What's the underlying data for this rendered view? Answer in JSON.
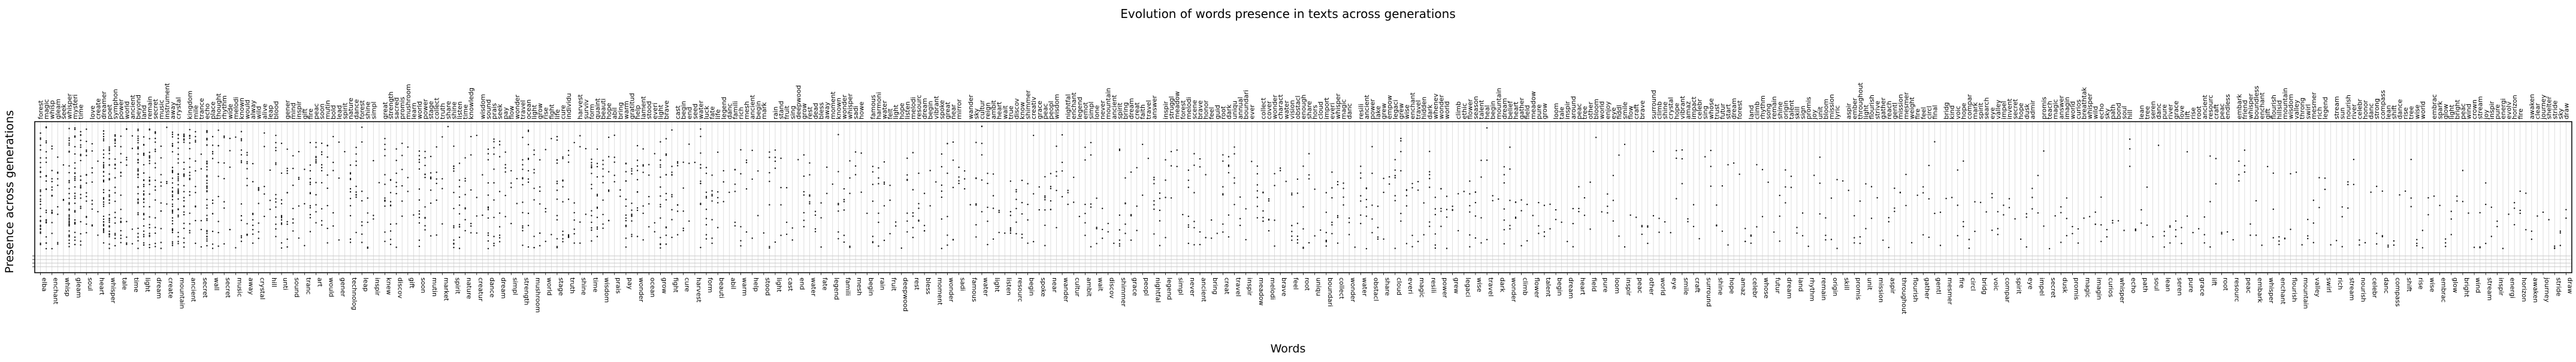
{
  "chart_data": {
    "type": "scatter",
    "title": "Evolution of words presence in texts across generations",
    "xlabel": "Words",
    "ylabel": "Presence across generations",
    "grid": true,
    "y_description": "unlabeled generation index; most markers cluster at the top of the plot, with a few early generations shaded at the bottom",
    "x_words": [
      "elba",
      "forest",
      "enchant",
      "magic",
      "whisp",
      "village",
      "gleam",
      "wise",
      "soul",
      "ancient",
      "heart",
      "seek",
      "whisper",
      "mysteri",
      "tale",
      "journey",
      "time",
      "love",
      "light",
      "extraordinari",
      "dream",
      "power",
      "create",
      "world",
      "mountain",
      "live",
      "ancient",
      "beyond",
      "secret",
      "land",
      "wall",
      "remain",
      "secret",
      "new",
      "music",
      "instrument",
      "away",
      "hidden",
      "crystal",
      "kingdom",
      "hill",
      "mile",
      "unti",
      "echo",
      "sound",
      "place",
      "tranc",
      "rhythm",
      "art",
      "melodi",
      "would",
      "known",
      "gener",
      "everi",
      "technolog",
      "mind",
      "leap",
      "wild",
      "inspir",
      "human",
      "knew",
      "alway",
      "discov",
      "fire",
      "gift",
      "peac",
      "soon",
      "journey",
      "mutin",
      "bold",
      "market",
      "lead",
      "spirit",
      "shadow",
      "nature",
      "secret",
      "creatur",
      "sacred",
      "dance",
      "forest",
      "dream",
      "shine",
      "simpl",
      "great",
      "strength",
      "promis",
      "mushroom",
      "learn",
      "world",
      "power",
      "stage",
      "collect",
      "truth",
      "share",
      "shine",
      "listen",
      "time",
      "knowledg",
      "wisdom",
      "sound",
      "prais",
      "seek",
      "pay",
      "flow",
      "wonder",
      "travel",
      "ocean",
      "light",
      "grow",
      "rise",
      "fight",
      "life",
      "cure",
      "individu",
      "harvest",
      "surviv",
      "form",
      "quaint",
      "beauti",
      "hope",
      "abil",
      "bring",
      "warm",
      "gratitud",
      "help",
      "lament",
      "stood",
      "everi",
      "light",
      "brave",
      "cast",
      "begin",
      "end",
      "seed",
      "water",
      "luck",
      "fate",
      "life",
      "legend",
      "danc",
      "famili",
      "rich",
      "mesh",
      "ancient",
      "begin",
      "mark",
      "rain",
      "stand",
      "fruit",
      "sing",
      "deepwood",
      "grow",
      "rest",
      "dead",
      "bless",
      "away",
      "moment",
      "known",
      "wonder",
      "whisper",
      "sadi",
      "howe",
      "famous",
      "harmoni",
      "water",
      "felt",
      "light",
      "hope",
      "listen",
      "melodi",
      "resourc",
      "dream",
      "begin",
      "vibrant",
      "spoke",
      "great",
      "near",
      "mirror",
      "wander",
      "sky",
      "cultur",
      "reign",
      "ambit",
      "heart",
      "wait",
      "true",
      "discov",
      "know",
      "shimmer",
      "creativ",
      "grace",
      "peac",
      "peopl",
      "wisdom",
      "nightfal",
      "enchant",
      "legend",
      "emot",
      "simpl",
      "lone",
      "never",
      "mountain",
      "ancient",
      "spirit",
      "bring",
      "dream",
      "creat",
      "faith",
      "travel",
      "answer",
      "inspir",
      "struggl",
      "meadow",
      "forest",
      "melodi",
      "scene",
      "brave",
      "honor",
      "feel",
      "guid",
      "root",
      "dark",
      "uniqu",
      "annual",
      "boundari",
      "ever",
      "collect",
      "cover",
      "wonder",
      "charact",
      "water",
      "vision",
      "obstacl",
      "enough",
      "share",
      "hors",
      "cloud",
      "import",
      "everi",
      "whisper",
      "magic",
      "danc",
      "resili",
      "ancient",
      "power",
      "lake",
      "grew",
      "empow",
      "legaci",
      "grew",
      "wise",
      "enchant",
      "travel",
      "hidden",
      "dark",
      "whenev",
      "wonder",
      "world",
      "climb",
      "ethic",
      "flower",
      "season",
      "talent",
      "heal",
      "begin",
      "mountain",
      "dream",
      "belief",
      "heart",
      "gather",
      "field",
      "meadow",
      "pure",
      "grow",
      "loom",
      "tale",
      "inspir",
      "around",
      "peac",
      "tree",
      "other",
      "bloom",
      "world",
      "enjoy",
      "eye",
      "fiddl",
      "smile",
      "flow",
      "craft",
      "brave",
      "surround",
      "climb",
      "shine",
      "crystal",
      "hope",
      "vibrant",
      "amaz",
      "impact",
      "celebr",
      "sing",
      "whose",
      "trust",
      "futur",
      "start",
      "dream",
      "forest",
      "land",
      "climb",
      "rhythm",
      "song",
      "remain",
      "shine",
      "origin",
      "talent",
      "skill",
      "sign",
      "promis",
      "joy",
      "unit",
      "bloom",
      "mission",
      "lyric",
      "aspir",
      "ember",
      "throughout",
      "light",
      "flourish",
      "strive",
      "gather",
      "reach",
      "gentl",
      "mission",
      "mesmer",
      "weight",
      "fire",
      "feel",
      "circl",
      "final",
      "bridg",
      "kind",
      "voic",
      "hope",
      "compar",
      "mark",
      "spirit",
      "search",
      "eye",
      "valley",
      "impel",
      "invent",
      "secret",
      "hope",
      "dusk",
      "admir",
      "promis",
      "teach",
      "magic",
      "answer",
      "imagin",
      "world",
      "curios",
      "breathtak",
      "whisper",
      "wild",
      "echo",
      "sky",
      "path",
      "bond",
      "soul",
      "hill",
      "lean",
      "tree",
      "seren",
      "danc",
      "pure",
      "river",
      "grace",
      "love",
      "lift",
      "rise",
      "root",
      "ancient",
      "resourc",
      "craft",
      "peac",
      "endless",
      "embark",
      "friend",
      "whisper",
      "boundless",
      "enchant",
      "gift",
      "flourish",
      "hillsid",
      "mountain",
      "wisdom",
      "valley",
      "throng",
      "swirl",
      "mesmer",
      "rich",
      "legend",
      "stream",
      "sun",
      "nourish",
      "river",
      "celebr",
      "honor",
      "danc",
      "strong",
      "compass",
      "lean",
      "shift",
      "dance",
      "rise",
      "tree",
      "wise",
      "world",
      "embrac",
      "spark",
      "glow",
      "light",
      "bright",
      "peac",
      "wind",
      "crown",
      "stream",
      "joy",
      "inspir",
      "pure",
      "energi",
      "evolv",
      "horizon",
      "fire",
      "awaken",
      "clear",
      "journey",
      "shelter",
      "stride",
      "sky",
      "draw"
    ],
    "tick_labels": [
      "elba",
      "forest",
      "enchant",
      "magic",
      "villag",
      "whisp",
      "gleam",
      "wise",
      "soul",
      "ancient",
      "heart",
      "mysteri",
      "seek",
      "whisper",
      "tale",
      "light",
      "journey",
      "time",
      "create",
      "love",
      "power",
      "extraordinari",
      "dream",
      "world",
      "symphon",
      "mountain",
      "nature",
      "live",
      "ancient",
      "beyond",
      "secret",
      "land",
      "wall",
      "remain",
      "music",
      "new",
      "instrument",
      "away",
      "secret",
      "hidden",
      "crystal",
      "kingdom",
      "mile",
      "hill",
      "echo",
      "rhythm",
      "sound",
      "place",
      "trance",
      "technolog",
      "art",
      "mind",
      "melodi",
      "known",
      "would",
      "human",
      "gener",
      "everi",
      "knew",
      "leap",
      "wild",
      "alway",
      "inspir",
      "discov",
      "music",
      "gift",
      "fire",
      "peac",
      "soon",
      "journey",
      "mutin",
      "market",
      "bold",
      "lead",
      "spirit",
      "shadow",
      "dance"
    ],
    "top_labels": [
      "forest",
      "magic",
      "whisp",
      "gleam",
      "seek",
      "whisper",
      "mysteri",
      "time",
      "love",
      "create",
      "dreamer",
      "poet",
      "symphon",
      "power",
      "world",
      "ancient",
      "beyond",
      "land",
      "remain",
      "secret",
      "music",
      "instrument",
      "away",
      "crystal",
      "kingdom",
      "mile",
      "trance",
      "echo",
      "place",
      "thought",
      "rhythm",
      "wide",
      "melodi",
      "known",
      "would",
      "alway",
      "wild",
      "alive",
      "leap",
      "blood",
      "gener",
      "mind",
      "inspir",
      "gift",
      "fire",
      "peac",
      "soon",
      "mutin",
      "bold",
      "lead",
      "spirit",
      "nature",
      "dance",
      "forest",
      "shine",
      "simpl",
      "great",
      "strength",
      "sacred",
      "promis",
      "mushroom",
      "learn",
      "world",
      "power",
      "stage",
      "collect",
      "truth",
      "share",
      "shine",
      "listen",
      "time",
      "knowledg",
      "wisdom",
      "sound",
      "prais",
      "seek",
      "pay",
      "flow",
      "wonder",
      "travel",
      "ocean",
      "light",
      "grow",
      "rise",
      "fight",
      "life",
      "cure",
      "individu",
      "harvest",
      "surviv",
      "form",
      "quaint",
      "beauti",
      "hope",
      "abil",
      "bring",
      "warm",
      "gratitud",
      "help",
      "lament",
      "stood",
      "everi",
      "light",
      "brave",
      "cast",
      "begin",
      "end",
      "seed",
      "water",
      "luck",
      "fate",
      "life",
      "legend",
      "danc",
      "famili",
      "rich",
      "mesh",
      "ancient",
      "begin",
      "mark",
      "rain",
      "stand",
      "fruit",
      "sing",
      "deepwood",
      "grow",
      "rest",
      "dead",
      "bless",
      "away",
      "moment",
      "known",
      "wonder",
      "whisper",
      "sadi",
      "howe",
      "famous",
      "harmoni",
      "water",
      "felt",
      "light",
      "hope",
      "listen",
      "melodi",
      "resourc",
      "dream",
      "begin",
      "vibrant",
      "spoke",
      "great",
      "near",
      "mirror",
      "wander",
      "sky",
      "cultur",
      "reign",
      "ambit",
      "heart",
      "wait",
      "true",
      "discov",
      "know",
      "shimmer",
      "creativ",
      "grace",
      "peac",
      "peopl",
      "wisdom",
      "nightfal",
      "enchant",
      "legend",
      "emot",
      "simpl",
      "lone",
      "never",
      "mountain",
      "ancient",
      "spirit",
      "bring",
      "dream",
      "creat",
      "faith",
      "travel",
      "answer",
      "inspir",
      "struggl",
      "meadow",
      "forest",
      "melodi",
      "scene",
      "brave",
      "honor",
      "feel",
      "guid",
      "root",
      "dark",
      "uniqu",
      "annual",
      "boundari",
      "ever",
      "collect",
      "cover",
      "wonder",
      "charact",
      "water",
      "vision",
      "obstacl",
      "enough",
      "share",
      "hors",
      "cloud",
      "import",
      "everi",
      "whisper",
      "magic",
      "danc",
      "resili",
      "ancient",
      "power",
      "lake",
      "grew",
      "empow",
      "legaci",
      "grew",
      "wise",
      "enchant",
      "travel",
      "hidden",
      "dark",
      "whenev",
      "wonder",
      "world",
      "climb",
      "ethic",
      "flower",
      "season",
      "talent",
      "heal",
      "begin",
      "mountain",
      "dream",
      "belief",
      "heart",
      "gather",
      "field",
      "meadow",
      "pure",
      "grow",
      "loom",
      "tale",
      "inspir",
      "around",
      "peac",
      "tree",
      "other",
      "bloom",
      "world",
      "enjoy",
      "eye",
      "fiddl",
      "smile",
      "flow",
      "craft",
      "brave",
      "surround",
      "climb",
      "shine",
      "crystal",
      "hope",
      "vibrant",
      "amaz",
      "impact",
      "celebr",
      "sing",
      "whose",
      "trust",
      "futur",
      "start",
      "dream",
      "forest",
      "land",
      "climb",
      "rhythm",
      "song",
      "remain",
      "shine",
      "origin",
      "talent",
      "skill",
      "sign",
      "promis",
      "joy",
      "unit",
      "bloom",
      "mission",
      "lyric",
      "aspir",
      "ember",
      "throughout",
      "light",
      "flourish",
      "strive",
      "gather",
      "reach",
      "gentl",
      "mission",
      "mesmer",
      "weight",
      "fire",
      "feel",
      "circl",
      "final",
      "bridg",
      "kind",
      "voic",
      "hope",
      "compar",
      "mark",
      "spirit",
      "search",
      "eye",
      "valley",
      "impel",
      "invent",
      "secret",
      "hope",
      "dusk",
      "admir",
      "promis",
      "teach",
      "magic",
      "answer",
      "imagin",
      "world",
      "curios",
      "breathtak",
      "whisper",
      "wild",
      "echo",
      "sky",
      "path",
      "bond",
      "soul",
      "hill",
      "lean",
      "tree",
      "seren",
      "danc",
      "pure",
      "river",
      "grace",
      "love",
      "lift",
      "rise",
      "root",
      "ancient",
      "resourc",
      "craft",
      "peac",
      "endless",
      "embark",
      "friend",
      "whisper",
      "boundless",
      "enchant",
      "gift",
      "flourish",
      "hillsid",
      "mountain",
      "wisdom",
      "valley",
      "throng",
      "swirl",
      "mesmer",
      "rich",
      "legend",
      "stream",
      "sun",
      "nourish",
      "river",
      "celebr",
      "honor",
      "danc",
      "strong",
      "compass",
      "lean",
      "shift",
      "dance",
      "rise",
      "tree",
      "wise",
      "world",
      "embrac",
      "spark",
      "glow",
      "light",
      "bright",
      "peac",
      "wind",
      "crown",
      "stream",
      "joy",
      "inspir",
      "pure",
      "energi",
      "evolv",
      "horizon",
      "fire",
      "awaken",
      "clear",
      "journey",
      "shelter",
      "stride",
      "sky",
      "draw"
    ]
  }
}
